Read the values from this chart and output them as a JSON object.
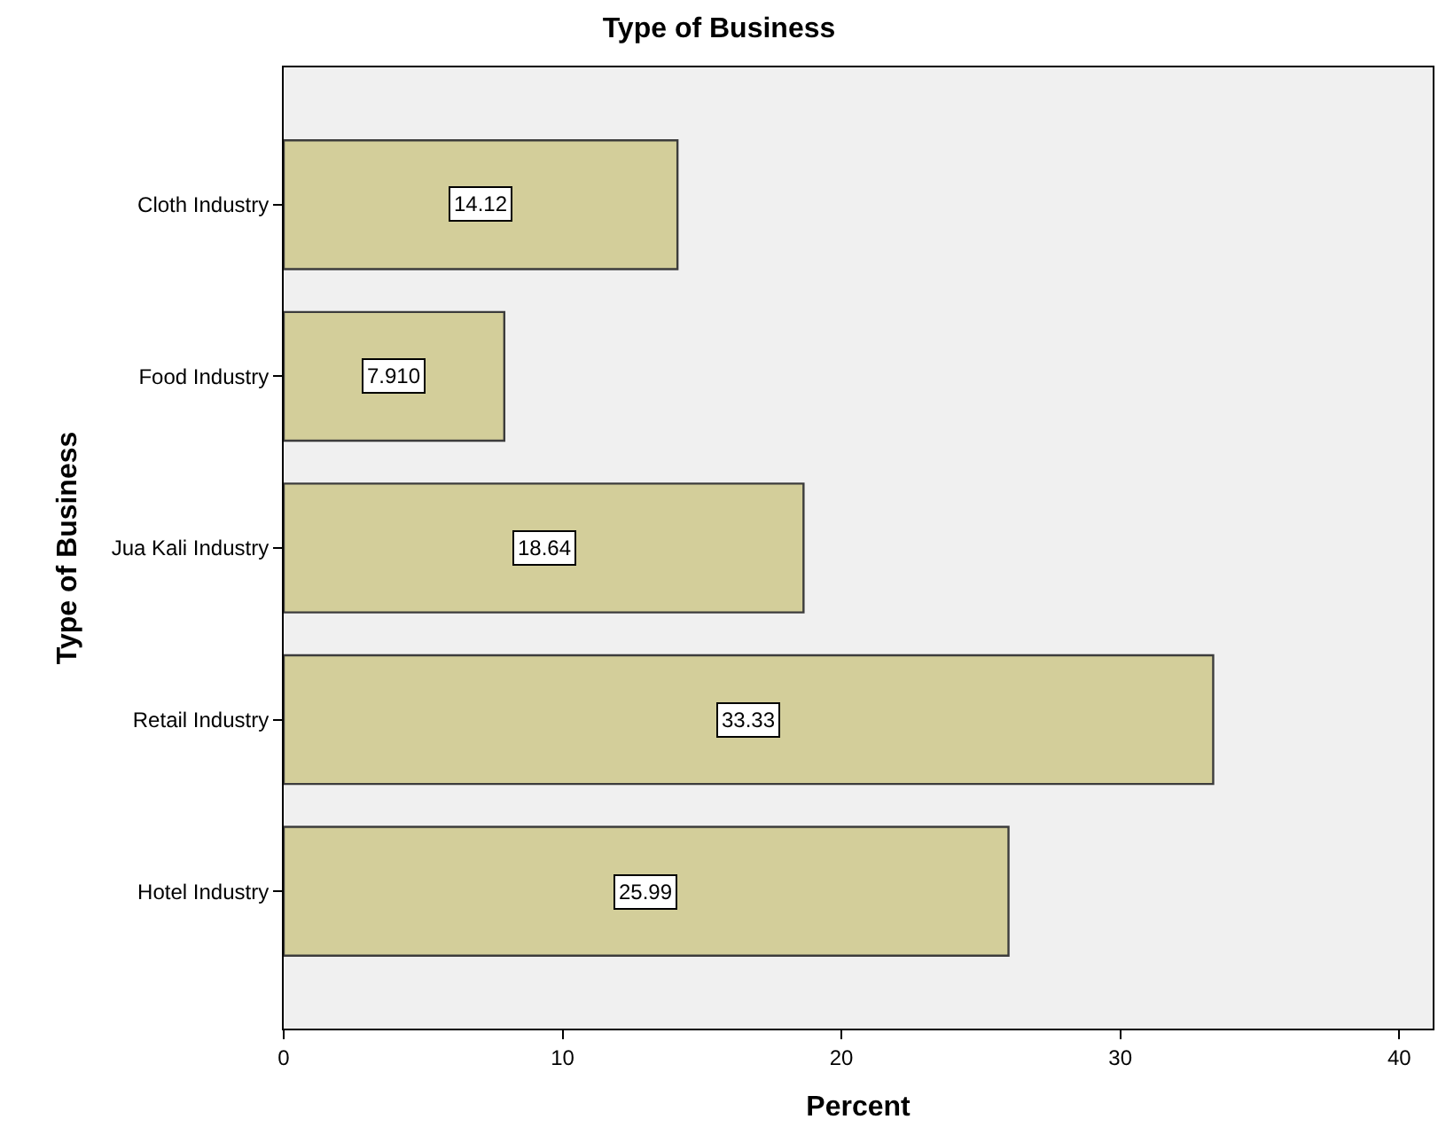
{
  "chart_data": {
    "type": "bar",
    "orientation": "horizontal",
    "title": "Type of Business",
    "xlabel": "Percent",
    "ylabel": "Type of Business",
    "categories": [
      "Cloth Industry",
      "Food Industry",
      "Jua Kali Industry",
      "Retail Industry",
      "Hotel Industry"
    ],
    "values": [
      14.12,
      7.91,
      18.64,
      33.33,
      25.99
    ],
    "value_labels": [
      "14.12",
      "7.910",
      "18.64",
      "33.33",
      "25.99"
    ],
    "color": "#d3ce9a",
    "xlim": [
      0,
      41.2
    ],
    "xticks": [
      0,
      10,
      20,
      30,
      40
    ],
    "grid": false,
    "legend": false
  }
}
